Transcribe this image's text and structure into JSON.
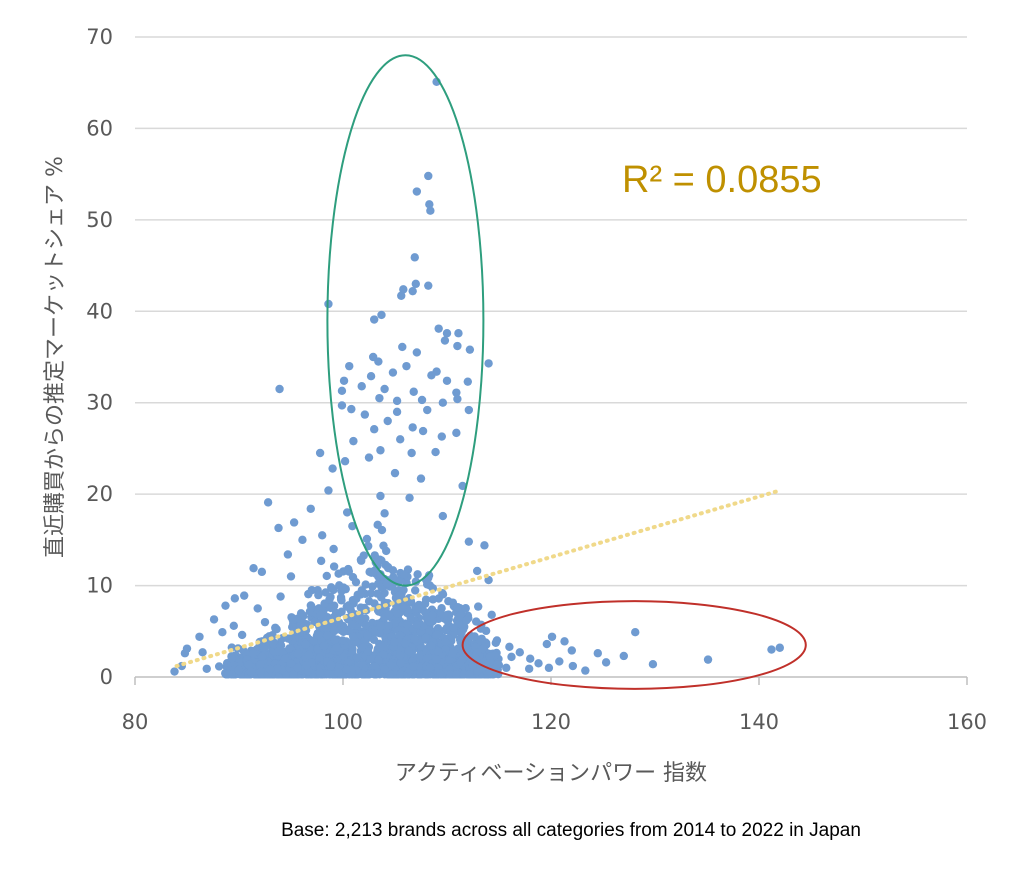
{
  "footnote": "Base: 2,213 brands across all categories from 2014 to 2022 in Japan",
  "chart_data": {
    "type": "scatter",
    "xlabel": "アクティベーションパワー 指数",
    "ylabel": "直近購買からの推定マーケットシェア %",
    "xlim": [
      80,
      160
    ],
    "ylim": [
      0,
      70
    ],
    "x_ticks": [
      "80",
      "100",
      "120",
      "140",
      "160"
    ],
    "y_ticks": [
      "0",
      "10",
      "20",
      "30",
      "40",
      "50",
      "60",
      "70"
    ],
    "grid": "horizontal",
    "point_color": "#6f9bd1",
    "annotation": "R² = 0.0855",
    "annotation_color": "#bf9000",
    "trendline": {
      "style": "dotted",
      "color": "#f0d98a",
      "x": [
        84,
        142
      ],
      "y": [
        1.2,
        20.4
      ]
    },
    "highlight_ellipses": [
      {
        "color": "#2e9e7e",
        "cx": 106,
        "cy": 39,
        "rx": 7.5,
        "ry": 29
      },
      {
        "color": "#c0302a",
        "cx": 128,
        "cy": 3.5,
        "rx": 16.5,
        "ry": 4.8
      }
    ],
    "points": [
      [
        109,
        65.1
      ],
      [
        108.2,
        54.8
      ],
      [
        107.1,
        53.1
      ],
      [
        108.3,
        51.7
      ],
      [
        108.4,
        51.0
      ],
      [
        106.9,
        45.9
      ],
      [
        105.8,
        42.4
      ],
      [
        107.0,
        43.0
      ],
      [
        108.2,
        42.8
      ],
      [
        106.7,
        42.2
      ],
      [
        105.6,
        41.7
      ],
      [
        98.6,
        40.8
      ],
      [
        103.7,
        39.6
      ],
      [
        103.0,
        39.1
      ],
      [
        109.2,
        38.1
      ],
      [
        110.0,
        37.6
      ],
      [
        111.1,
        37.6
      ],
      [
        109.8,
        36.8
      ],
      [
        111.0,
        36.2
      ],
      [
        105.7,
        36.1
      ],
      [
        112.2,
        35.8
      ],
      [
        107.1,
        35.5
      ],
      [
        102.9,
        35.0
      ],
      [
        114.0,
        34.3
      ],
      [
        100.6,
        34.0
      ],
      [
        103.4,
        34.5
      ],
      [
        106.1,
        34.0
      ],
      [
        109.0,
        33.4
      ],
      [
        104.8,
        33.3
      ],
      [
        108.5,
        33.0
      ],
      [
        102.7,
        32.9
      ],
      [
        110.0,
        32.4
      ],
      [
        112.0,
        32.3
      ],
      [
        100.1,
        32.4
      ],
      [
        93.9,
        31.5
      ],
      [
        101.8,
        31.8
      ],
      [
        104.0,
        31.5
      ],
      [
        106.8,
        31.2
      ],
      [
        110.9,
        31.1
      ],
      [
        99.9,
        31.3
      ],
      [
        103.5,
        30.5
      ],
      [
        111.0,
        30.4
      ],
      [
        107.6,
        30.3
      ],
      [
        109.6,
        30.0
      ],
      [
        105.2,
        30.2
      ],
      [
        99.9,
        29.7
      ],
      [
        100.8,
        29.3
      ],
      [
        105.2,
        29.0
      ],
      [
        108.1,
        29.2
      ],
      [
        102.1,
        28.7
      ],
      [
        112.1,
        29.2
      ],
      [
        104.3,
        28.0
      ],
      [
        106.7,
        27.3
      ],
      [
        103.0,
        27.1
      ],
      [
        107.7,
        26.9
      ],
      [
        110.9,
        26.7
      ],
      [
        109.5,
        26.3
      ],
      [
        105.5,
        26.0
      ],
      [
        101.0,
        25.8
      ],
      [
        97.8,
        24.5
      ],
      [
        103.6,
        24.8
      ],
      [
        108.9,
        24.6
      ],
      [
        106.6,
        24.5
      ],
      [
        102.5,
        24.0
      ],
      [
        100.2,
        23.6
      ],
      [
        99.0,
        22.8
      ],
      [
        105.0,
        22.3
      ],
      [
        107.5,
        21.7
      ],
      [
        111.5,
        20.9
      ],
      [
        98.6,
        20.4
      ],
      [
        103.6,
        19.8
      ],
      [
        106.4,
        19.6
      ],
      [
        92.8,
        19.1
      ],
      [
        96.9,
        18.4
      ],
      [
        100.4,
        18.0
      ],
      [
        104.0,
        17.9
      ],
      [
        109.6,
        17.6
      ],
      [
        95.3,
        16.9
      ],
      [
        100.9,
        16.5
      ],
      [
        93.8,
        16.3
      ],
      [
        98.0,
        15.5
      ],
      [
        102.3,
        15.1
      ],
      [
        96.1,
        15.0
      ],
      [
        112.1,
        14.8
      ],
      [
        113.6,
        14.4
      ],
      [
        99.1,
        14.0
      ],
      [
        94.7,
        13.4
      ],
      [
        97.9,
        12.7
      ],
      [
        91.4,
        11.9
      ],
      [
        100.5,
        11.8
      ],
      [
        92.2,
        11.5
      ],
      [
        95.0,
        11.0
      ],
      [
        112.9,
        11.6
      ],
      [
        114.0,
        10.6
      ],
      [
        89.6,
        8.6
      ],
      [
        90.5,
        8.9
      ],
      [
        94.0,
        8.8
      ],
      [
        97.0,
        9.5
      ],
      [
        88.7,
        7.8
      ],
      [
        91.8,
        7.5
      ],
      [
        113.0,
        7.7
      ],
      [
        114.3,
        6.8
      ],
      [
        87.6,
        6.3
      ],
      [
        89.5,
        5.6
      ],
      [
        92.5,
        6.0
      ],
      [
        96.2,
        6.7
      ],
      [
        113.3,
        5.7
      ],
      [
        86.2,
        4.4
      ],
      [
        88.4,
        4.9
      ],
      [
        90.3,
        4.6
      ],
      [
        85.0,
        3.1
      ],
      [
        86.5,
        2.7
      ],
      [
        84.5,
        1.2
      ],
      [
        83.8,
        0.6
      ],
      [
        84.8,
        2.6
      ],
      [
        86.9,
        0.9
      ],
      [
        114.8,
        4.0
      ],
      [
        116.0,
        3.3
      ],
      [
        117.0,
        2.7
      ],
      [
        118.0,
        2.0
      ],
      [
        119.6,
        3.6
      ],
      [
        120.1,
        4.4
      ],
      [
        121.3,
        3.9
      ],
      [
        122.0,
        2.9
      ],
      [
        120.8,
        1.7
      ],
      [
        119.8,
        1.0
      ],
      [
        118.8,
        1.5
      ],
      [
        122.1,
        1.2
      ],
      [
        124.5,
        2.6
      ],
      [
        125.3,
        1.6
      ],
      [
        127.0,
        2.3
      ],
      [
        128.1,
        4.9
      ],
      [
        129.8,
        1.4
      ],
      [
        135.1,
        1.9
      ],
      [
        141.2,
        3.0
      ],
      [
        142.0,
        3.2
      ],
      [
        116.2,
        2.2
      ],
      [
        117.9,
        0.9
      ],
      [
        115.7,
        1.0
      ],
      [
        123.3,
        0.7
      ]
    ],
    "dense_region": {
      "description_note": "",
      "seed": 7
    }
  }
}
